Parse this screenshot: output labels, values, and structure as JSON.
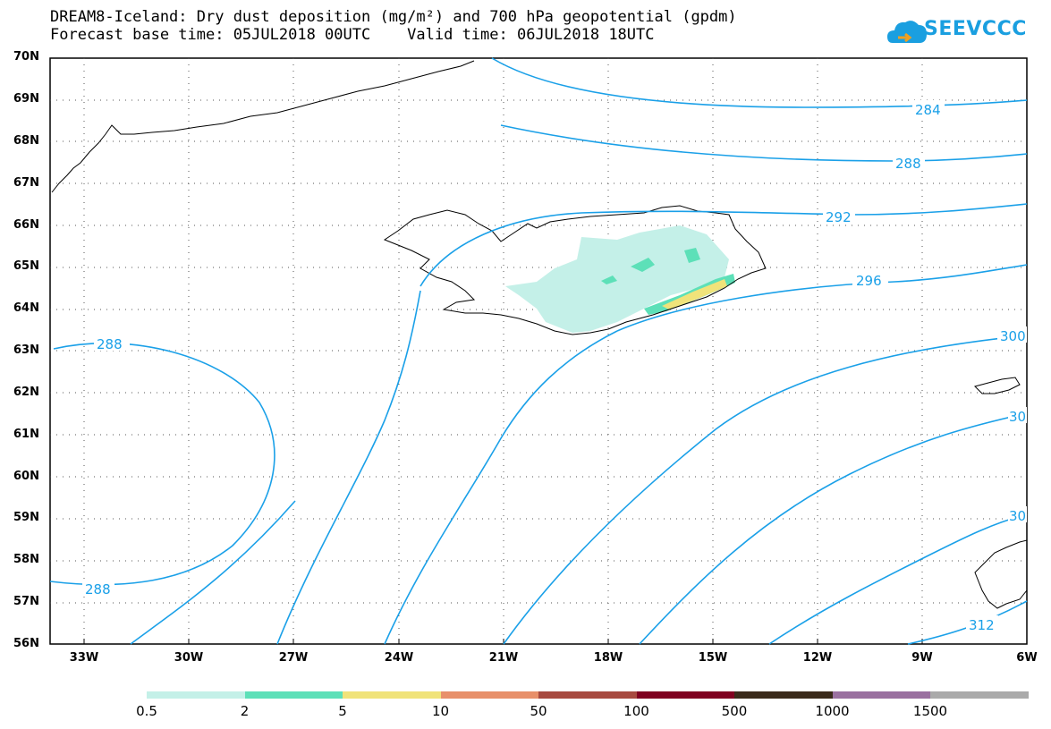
{
  "title": {
    "line1": "DREAM8-Iceland: Dry dust deposition (mg/m²) and 700 hPa geopotential (gpdm)",
    "line2": "Forecast base time: 05JUL2018 00UTC    Valid time: 06JUL2018 18UTC"
  },
  "logo": {
    "text": "SEEVCCC",
    "icon": "cloud-icon",
    "color": "#1a9fe0"
  },
  "map": {
    "lat_labels": [
      "70N",
      "69N",
      "68N",
      "67N",
      "66N",
      "65N",
      "64N",
      "63N",
      "62N",
      "61N",
      "60N",
      "59N",
      "58N",
      "57N",
      "56N"
    ],
    "lon_labels": [
      "33W",
      "30W",
      "27W",
      "24W",
      "21W",
      "18W",
      "15W",
      "12W",
      "9W",
      "6W"
    ],
    "contour_color": "#1aa0e8",
    "contour_labels": [
      {
        "text": "284"
      },
      {
        "text": "288"
      },
      {
        "text": "292"
      },
      {
        "text": "296"
      },
      {
        "text": "300"
      },
      {
        "text": "30"
      },
      {
        "text": "30"
      },
      {
        "text": "312"
      },
      {
        "text": "288"
      },
      {
        "text": "288"
      }
    ]
  },
  "colorbar": {
    "labels": [
      "0.5",
      "2",
      "5",
      "10",
      "50",
      "100",
      "500",
      "1000",
      "1500"
    ],
    "colors": [
      "#c4f0e8",
      "#5de0b8",
      "#f0e37a",
      "#e8906a",
      "#a84a40",
      "#800020",
      "#3a2a1a",
      "#9a70a0",
      "#aaaaaa"
    ]
  }
}
